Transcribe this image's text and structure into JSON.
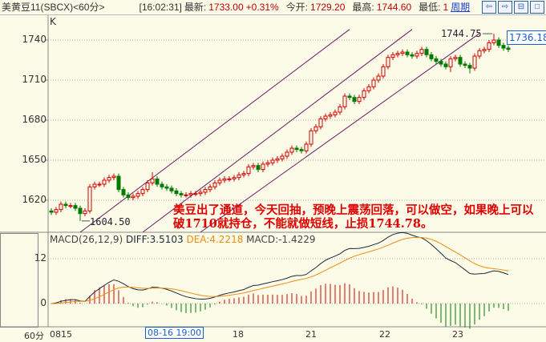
{
  "header": {
    "symbol": "美黄豆11(SBCX)<60分>",
    "time": "[16:02:31]",
    "latest_label": "最新:",
    "latest": "1733.00",
    "change": "+0.31%",
    "open_label": "今开:",
    "open": "1729.20",
    "high_label": "最高:",
    "high": "1744.60",
    "low_label": "最低:",
    "low": "1",
    "period_link": "周期",
    "buttons": [
      {
        "icon": "arrow-left-icon",
        "glyph": "⇦"
      },
      {
        "icon": "arrow-right-icon",
        "glyph": "⇨"
      },
      {
        "icon": "split-icon",
        "glyph": "⊟"
      },
      {
        "icon": "window-icon",
        "glyph": "□"
      }
    ]
  },
  "main": {
    "k_label": "K",
    "y_ticks": [
      1740,
      1710,
      1680,
      1650,
      1620
    ],
    "last_price_box": "1736.18",
    "high_marker": "1744.75",
    "low_marker": "1604.50",
    "annotation": "美豆出了通道，今天回抽，预晚上震荡回落，可以做空，如果晚上可以破1710就持仓，不能就做短线，止损1744.78。"
  },
  "colors": {
    "up": "#d00000",
    "down": "#007a00",
    "channel": "#6a1a6a",
    "diff": "#1a2a3a",
    "dea": "#f08c10",
    "grid": "#b0b0a0"
  },
  "chart_data": [
    {
      "type": "candlestick",
      "ylim": [
        1596,
        1750
      ],
      "open": [
        1612,
        1611,
        1613,
        1617,
        1616,
        1616,
        1614,
        1610,
        1612,
        1630,
        1632,
        1632,
        1635,
        1637,
        1638,
        1628,
        1624,
        1622,
        1623,
        1625,
        1628,
        1633,
        1636,
        1632,
        1630,
        1629,
        1627,
        1625,
        1624,
        1624,
        1625,
        1625,
        1626,
        1628,
        1630,
        1633,
        1635,
        1636,
        1636,
        1637,
        1639,
        1640,
        1645,
        1646,
        1643,
        1647,
        1648,
        1650,
        1651,
        1653,
        1656,
        1659,
        1658,
        1657,
        1662,
        1672,
        1675,
        1681,
        1683,
        1684,
        1686,
        1690,
        1698,
        1697,
        1694,
        1697,
        1702,
        1705,
        1710,
        1713,
        1720,
        1727,
        1729,
        1730,
        1731,
        1729,
        1728,
        1730,
        1733,
        1729,
        1726,
        1724,
        1722,
        1720,
        1726,
        1727,
        1722,
        1721,
        1719,
        1728,
        1732,
        1733,
        1738,
        1740,
        1736,
        1734
      ],
      "high": [
        1614,
        1615,
        1619,
        1619,
        1618,
        1618,
        1616,
        1614,
        1632,
        1634,
        1634,
        1637,
        1639,
        1640,
        1640,
        1630,
        1626,
        1625,
        1627,
        1630,
        1635,
        1641,
        1638,
        1634,
        1632,
        1631,
        1629,
        1627,
        1626,
        1627,
        1627,
        1628,
        1630,
        1632,
        1635,
        1637,
        1638,
        1638,
        1639,
        1641,
        1642,
        1647,
        1648,
        1648,
        1649,
        1650,
        1652,
        1653,
        1655,
        1658,
        1661,
        1661,
        1660,
        1664,
        1674,
        1677,
        1683,
        1685,
        1686,
        1688,
        1692,
        1700,
        1700,
        1699,
        1699,
        1704,
        1707,
        1712,
        1715,
        1722,
        1729,
        1731,
        1732,
        1733,
        1733,
        1731,
        1732,
        1735,
        1735,
        1731,
        1728,
        1726,
        1724,
        1728,
        1729,
        1729,
        1724,
        1723,
        1730,
        1734,
        1735,
        1740,
        1744.75,
        1742,
        1738,
        1736
      ],
      "low": [
        1609,
        1609,
        1611,
        1614,
        1614,
        1612,
        1604.5,
        1608,
        1610,
        1628,
        1630,
        1630,
        1633,
        1635,
        1626,
        1622,
        1620,
        1620,
        1621,
        1623,
        1626,
        1631,
        1630,
        1628,
        1627,
        1625,
        1623,
        1622,
        1622,
        1622,
        1623,
        1623,
        1624,
        1626,
        1628,
        1631,
        1633,
        1634,
        1634,
        1635,
        1637,
        1638,
        1643,
        1641,
        1641,
        1645,
        1646,
        1648,
        1649,
        1651,
        1654,
        1656,
        1655,
        1655,
        1660,
        1670,
        1673,
        1679,
        1681,
        1682,
        1684,
        1688,
        1695,
        1692,
        1692,
        1695,
        1700,
        1703,
        1708,
        1711,
        1718,
        1725,
        1727,
        1728,
        1727,
        1726,
        1726,
        1728,
        1727,
        1724,
        1722,
        1720,
        1718,
        1716,
        1724,
        1720,
        1719,
        1715,
        1717,
        1726,
        1730,
        1731,
        1736,
        1734,
        1732,
        1731
      ],
      "close": [
        1611,
        1613,
        1617,
        1616,
        1616,
        1614,
        1610,
        1612,
        1630,
        1632,
        1632,
        1635,
        1637,
        1638,
        1628,
        1624,
        1622,
        1623,
        1625,
        1628,
        1633,
        1636,
        1632,
        1630,
        1629,
        1627,
        1625,
        1624,
        1624,
        1625,
        1625,
        1626,
        1628,
        1630,
        1633,
        1635,
        1636,
        1636,
        1637,
        1639,
        1640,
        1645,
        1646,
        1643,
        1647,
        1648,
        1650,
        1651,
        1653,
        1656,
        1659,
        1658,
        1657,
        1662,
        1672,
        1675,
        1681,
        1683,
        1684,
        1686,
        1690,
        1698,
        1697,
        1694,
        1697,
        1702,
        1705,
        1710,
        1713,
        1720,
        1727,
        1729,
        1730,
        1731,
        1729,
        1728,
        1730,
        1733,
        1729,
        1726,
        1724,
        1722,
        1720,
        1726,
        1727,
        1722,
        1721,
        1719,
        1728,
        1732,
        1733,
        1738,
        1740,
        1736,
        1734,
        1733
      ],
      "channel_lines": [
        [
          [
            6,
            1596
          ],
          [
            62,
            1748
          ]
        ],
        [
          [
            19,
            1596
          ],
          [
            75,
            1748
          ]
        ],
        [
          [
            31,
            1596
          ],
          [
            89,
            1745
          ]
        ]
      ]
    },
    {
      "type": "macd",
      "label": "MACD(26,12,9)",
      "diff_label": "DIFF:3.5103",
      "dea_label": "DEA:4.2218",
      "macd_label": "MACD:-1.4229",
      "y_ticks": [
        12,
        0
      ],
      "ylim": [
        -7,
        17
      ]
    }
  ],
  "time_axis": {
    "period": "60分",
    "labels": [
      "0815",
      "18",
      "21",
      "22",
      "23"
    ],
    "selected": "08-16 19:00"
  }
}
